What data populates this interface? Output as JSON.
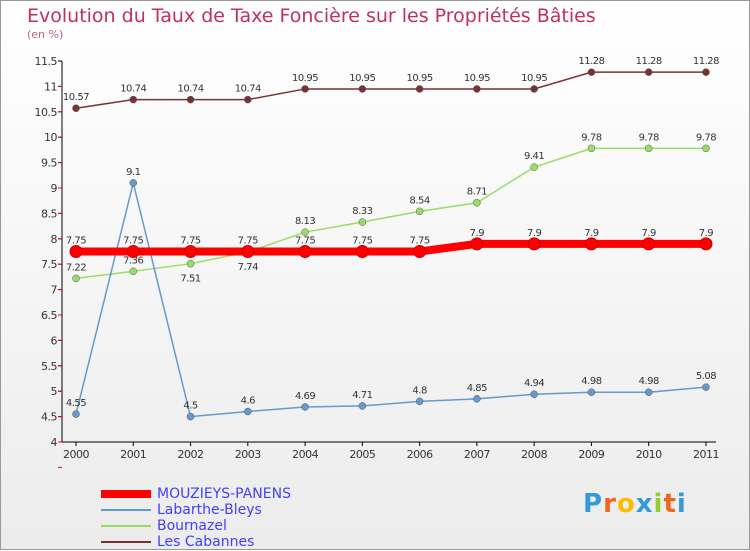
{
  "chart_data": {
    "type": "line",
    "title": "Evolution du Taux de Taxe Foncière sur les Propriétés Bâties",
    "ylabel": "(en %)",
    "x": [
      "2000",
      "2001",
      "2002",
      "2003",
      "2004",
      "2005",
      "2006",
      "2007",
      "2008",
      "2009",
      "2010",
      "2011"
    ],
    "ylim": [
      4,
      11.5
    ],
    "yticks": [
      "4",
      "4.5",
      "5",
      "5.5",
      "6",
      "6.5",
      "7",
      "7.5",
      "8",
      "8.5",
      "9",
      "9.5",
      "10",
      "10.5",
      "11",
      "11.5"
    ],
    "series": [
      {
        "name": "MOUZIEYS-PANENS",
        "color": "#ff0000",
        "values": [
          7.75,
          7.75,
          7.75,
          7.75,
          7.75,
          7.75,
          7.75,
          7.9,
          7.9,
          7.9,
          7.9,
          7.9
        ]
      },
      {
        "name": "Labarthe-Bleys",
        "color": "#6699cc",
        "values": [
          4.55,
          9.1,
          4.5,
          4.6,
          4.69,
          4.71,
          4.8,
          4.85,
          4.94,
          4.98,
          4.98,
          5.08
        ]
      },
      {
        "name": "Bournazel",
        "color": "#99dd66",
        "values": [
          7.22,
          7.36,
          7.51,
          7.74,
          8.13,
          8.33,
          8.54,
          8.71,
          9.41,
          9.78,
          9.78,
          9.78
        ]
      },
      {
        "name": "Les Cabannes",
        "color": "#773333",
        "values": [
          10.57,
          10.74,
          10.74,
          10.74,
          10.95,
          10.95,
          10.95,
          10.95,
          10.95,
          11.28,
          11.28,
          11.28
        ]
      }
    ]
  },
  "logo": "Proxiti"
}
